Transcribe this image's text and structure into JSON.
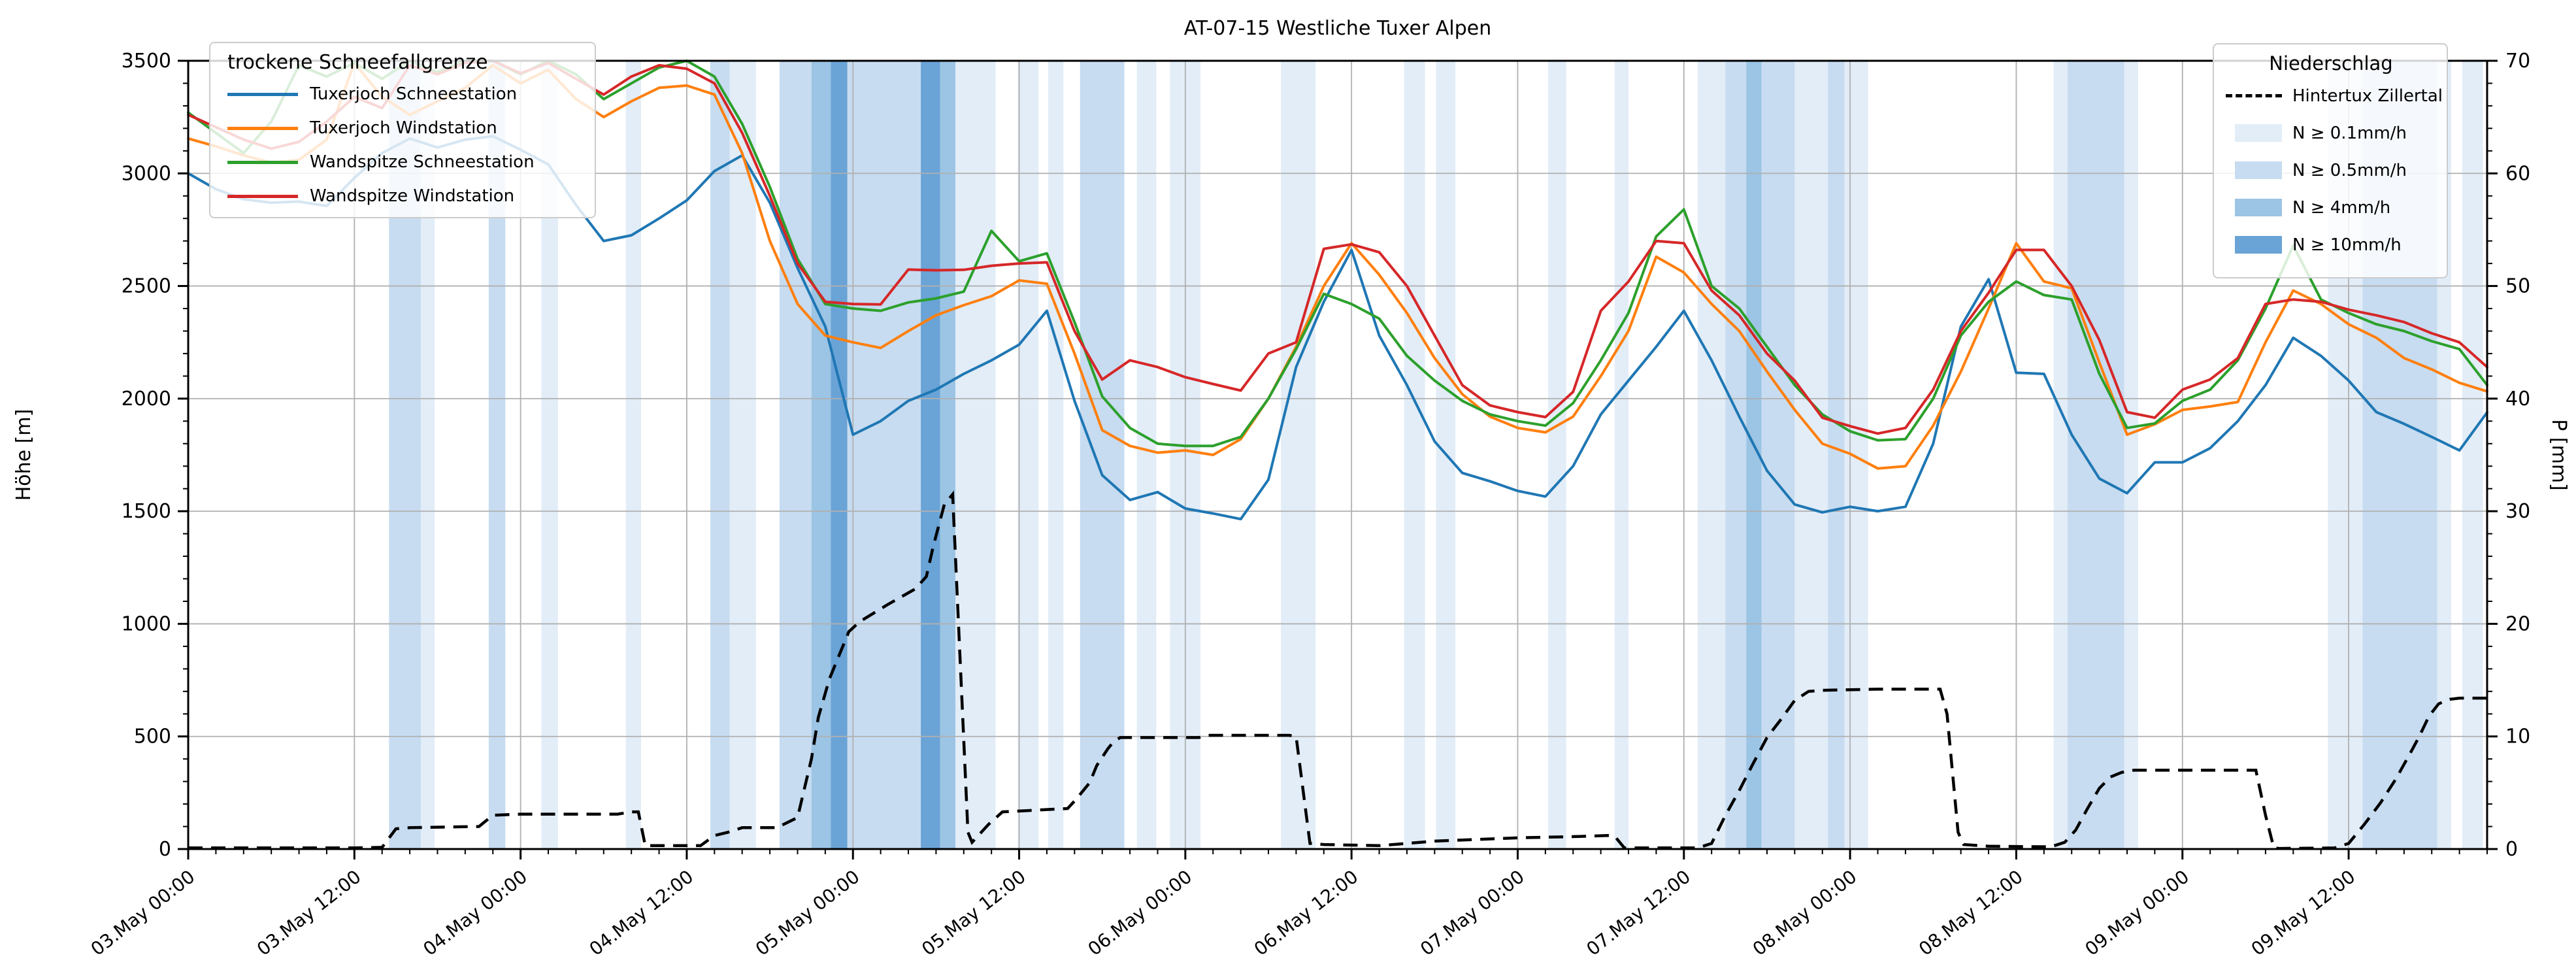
{
  "title": "AT-07-15 Westliche Tuxer Alpen",
  "axes": {
    "left_label": "Höhe [m]",
    "right_label": "P [mm]",
    "left_ticks": [
      "0",
      "500",
      "1000",
      "1500",
      "2000",
      "2500",
      "3000",
      "3500"
    ],
    "right_ticks": [
      "0",
      "10",
      "20",
      "30",
      "40",
      "50",
      "60",
      "70"
    ],
    "x_tick_labels": [
      "03.May 00:00",
      "03.May 12:00",
      "04.May 00:00",
      "04.May 12:00",
      "05.May 00:00",
      "05.May 12:00",
      "06.May 00:00",
      "06.May 12:00",
      "07.May 00:00",
      "07.May 12:00",
      "08.May 00:00",
      "08.May 12:00",
      "09.May 00:00",
      "09.May 12:00"
    ]
  },
  "legend_left": {
    "title": "trockene Schneefallgrenze",
    "entries": [
      {
        "label": "Tuxerjoch Schneestation",
        "color": "#1f77b4"
      },
      {
        "label": "Tuxerjoch Windstation",
        "color": "#ff7f0e"
      },
      {
        "label": "Wandspitze Schneestation",
        "color": "#2ca02c"
      },
      {
        "label": "Wandspitze Windstation",
        "color": "#d62728"
      }
    ]
  },
  "legend_right": {
    "title": "Niederschlag",
    "line_entry": {
      "label": "Hintertux Zillertal",
      "color": "#000000",
      "style": "dashed"
    },
    "band_entries": [
      {
        "label": "N ≥ 0.1mm/h",
        "color": "#e2edf8"
      },
      {
        "label": "N ≥ 0.5mm/h",
        "color": "#c7dcf0"
      },
      {
        "label": "N ≥ 4mm/h",
        "color": "#9cc4e4"
      },
      {
        "label": "N ≥ 10mm/h",
        "color": "#6aa3d6"
      }
    ]
  },
  "chart_data": {
    "type": "line",
    "title": "AT-07-15 Westliche Tuxer Alpen",
    "x_unit": "hours since 03.May 00:00",
    "x_range": [
      0,
      166
    ],
    "x_major_tick_step_h": 12,
    "x_minor_tick_step_h": 2,
    "ylabel": "Höhe [m]",
    "ylim": [
      0,
      3500
    ],
    "y2label": "P [mm]",
    "y2lim": [
      0,
      70
    ],
    "grid": true,
    "sample_step_h": 2,
    "series": [
      {
        "name": "Tuxerjoch Schneestation",
        "color": "#1f77b4",
        "axis": "left",
        "values": [
          3000,
          2930,
          2885,
          2870,
          2875,
          2855,
          2980,
          3090,
          3155,
          3115,
          3150,
          3165,
          3105,
          3040,
          2860,
          2700,
          2725,
          2800,
          2880,
          3010,
          3080,
          2870,
          2580,
          2320,
          1840,
          1900,
          1990,
          2040,
          2110,
          2170,
          2240,
          2390,
          1990,
          1660,
          1550,
          1585,
          1512,
          1490,
          1465,
          1640,
          2140,
          2430,
          2660,
          2280,
          2060,
          1810,
          1670,
          1633,
          1590,
          1565,
          1700,
          1930,
          2080,
          2230,
          2390,
          2170,
          1920,
          1680,
          1530,
          1495,
          1520,
          1500,
          1520,
          1800,
          2320,
          2530,
          2115,
          2110,
          1840,
          1645,
          1580,
          1717,
          1717,
          1780,
          1900,
          2060,
          2270,
          2190,
          2080,
          1940,
          1888,
          1830,
          1770,
          1939
        ]
      },
      {
        "name": "Tuxerjoch Windstation",
        "color": "#ff7f0e",
        "axis": "left",
        "values": [
          3155,
          3120,
          3080,
          3048,
          3060,
          3150,
          3490,
          3340,
          3260,
          3320,
          3380,
          3480,
          3400,
          3460,
          3330,
          3250,
          3320,
          3380,
          3390,
          3350,
          3090,
          2700,
          2420,
          2280,
          2250,
          2225,
          2300,
          2370,
          2415,
          2455,
          2525,
          2510,
          2200,
          1860,
          1790,
          1760,
          1770,
          1750,
          1820,
          2000,
          2230,
          2500,
          2690,
          2550,
          2380,
          2180,
          2020,
          1920,
          1870,
          1850,
          1920,
          2100,
          2300,
          2630,
          2560,
          2420,
          2300,
          2120,
          1950,
          1800,
          1755,
          1690,
          1700,
          1880,
          2120,
          2400,
          2690,
          2520,
          2490,
          2160,
          1840,
          1886,
          1950,
          1965,
          1985,
          2250,
          2480,
          2420,
          2330,
          2270,
          2180,
          2130,
          2070,
          2032
        ]
      },
      {
        "name": "Wandspitze Schneestation",
        "color": "#2ca02c",
        "axis": "left",
        "values": [
          3270,
          3180,
          3090,
          3230,
          3480,
          3430,
          3490,
          3420,
          3500,
          3450,
          3500,
          3500,
          3440,
          3500,
          3440,
          3330,
          3400,
          3470,
          3500,
          3430,
          3220,
          2940,
          2620,
          2420,
          2400,
          2390,
          2427,
          2445,
          2475,
          2745,
          2610,
          2645,
          2340,
          2010,
          1870,
          1800,
          1790,
          1790,
          1830,
          2000,
          2220,
          2465,
          2420,
          2355,
          2190,
          2080,
          1990,
          1930,
          1900,
          1880,
          1980,
          2170,
          2380,
          2720,
          2840,
          2500,
          2400,
          2230,
          2060,
          1930,
          1855,
          1815,
          1820,
          2000,
          2280,
          2430,
          2520,
          2460,
          2440,
          2110,
          1870,
          1890,
          1990,
          2040,
          2170,
          2400,
          2680,
          2440,
          2380,
          2330,
          2300,
          2255,
          2220,
          2060
        ]
      },
      {
        "name": "Wandspitze Windstation",
        "color": "#d62728",
        "axis": "left",
        "values": [
          3260,
          3205,
          3150,
          3110,
          3140,
          3230,
          3340,
          3290,
          3480,
          3440,
          3490,
          3500,
          3445,
          3490,
          3420,
          3350,
          3430,
          3480,
          3465,
          3400,
          3180,
          2900,
          2600,
          2430,
          2420,
          2418,
          2573,
          2570,
          2572,
          2590,
          2600,
          2605,
          2300,
          2085,
          2170,
          2140,
          2095,
          2065,
          2036,
          2200,
          2250,
          2665,
          2685,
          2650,
          2500,
          2280,
          2060,
          1970,
          1940,
          1918,
          2030,
          2390,
          2520,
          2700,
          2690,
          2480,
          2370,
          2200,
          2080,
          1915,
          1878,
          1845,
          1870,
          2040,
          2300,
          2470,
          2660,
          2660,
          2500,
          2260,
          1940,
          1915,
          2040,
          2085,
          2180,
          2420,
          2440,
          2430,
          2395,
          2370,
          2340,
          2290,
          2250,
          2140
        ]
      }
    ],
    "precipitation_line": {
      "name": "Hintertux Zillertal",
      "color": "#000000",
      "style": "dashed",
      "axis": "right",
      "points_t_mm": [
        [
          0,
          0.1
        ],
        [
          12,
          0.1
        ],
        [
          14,
          0.15
        ],
        [
          15,
          1.8
        ],
        [
          16,
          1.9
        ],
        [
          21,
          2.0
        ],
        [
          22,
          3.0
        ],
        [
          24,
          3.1
        ],
        [
          31,
          3.1
        ],
        [
          32,
          3.3
        ],
        [
          32.5,
          3.3
        ],
        [
          33,
          0.3
        ],
        [
          37,
          0.3
        ],
        [
          38,
          1.2
        ],
        [
          39,
          1.5
        ],
        [
          40,
          1.9
        ],
        [
          42.5,
          1.9
        ],
        [
          44,
          2.8
        ],
        [
          45,
          8.0
        ],
        [
          45.5,
          11.7
        ],
        [
          46.3,
          15.1
        ],
        [
          47.7,
          19.3
        ],
        [
          48.5,
          20.2
        ],
        [
          50.5,
          21.7
        ],
        [
          52.5,
          23.1
        ],
        [
          53.3,
          24.2
        ],
        [
          53.8,
          26.9
        ],
        [
          54.6,
          30.6
        ],
        [
          55.2,
          31.5
        ],
        [
          56.3,
          1.5
        ],
        [
          56.6,
          0.6
        ],
        [
          57.8,
          2.2
        ],
        [
          58.8,
          3.3
        ],
        [
          63.5,
          3.6
        ],
        [
          64.1,
          4.4
        ],
        [
          65.1,
          5.9
        ],
        [
          65.6,
          7.4
        ],
        [
          66.4,
          8.9
        ],
        [
          66.8,
          9.5
        ],
        [
          67.3,
          9.9
        ],
        [
          73,
          9.9
        ],
        [
          73.5,
          10.1
        ],
        [
          79.5,
          10.1
        ],
        [
          80,
          10.0
        ],
        [
          81,
          0.5
        ],
        [
          82,
          0.4
        ],
        [
          86,
          0.3
        ],
        [
          88,
          0.5
        ],
        [
          90,
          0.7
        ],
        [
          93,
          0.85
        ],
        [
          96,
          1.0
        ],
        [
          100,
          1.1
        ],
        [
          102.5,
          1.2
        ],
        [
          103,
          1.15
        ],
        [
          103.7,
          0.1
        ],
        [
          109,
          0.1
        ],
        [
          110,
          0.5
        ],
        [
          111,
          3.0
        ],
        [
          112,
          5.2
        ],
        [
          113,
          7.6
        ],
        [
          114,
          9.9
        ],
        [
          115,
          11.5
        ],
        [
          116,
          13.2
        ],
        [
          117,
          14.0
        ],
        [
          118,
          14.1
        ],
        [
          122,
          14.2
        ],
        [
          126.5,
          14.2
        ],
        [
          127,
          12.0
        ],
        [
          127.8,
          1.5
        ],
        [
          128.2,
          0.4
        ],
        [
          130,
          0.25
        ],
        [
          134.5,
          0.2
        ],
        [
          135.5,
          0.6
        ],
        [
          136.3,
          1.7
        ],
        [
          137.1,
          3.5
        ],
        [
          138,
          5.4
        ],
        [
          138.8,
          6.4
        ],
        [
          139.6,
          6.8
        ],
        [
          140.5,
          7.0
        ],
        [
          149.3,
          7.0
        ],
        [
          150,
          3.0
        ],
        [
          150.6,
          0.1
        ],
        [
          151,
          0.05
        ],
        [
          155,
          0.1
        ],
        [
          156,
          0.5
        ],
        [
          157.2,
          2.3
        ],
        [
          158.3,
          4.1
        ],
        [
          159.4,
          6.2
        ],
        [
          160.4,
          8.4
        ],
        [
          161.1,
          10.0
        ],
        [
          161.8,
          11.8
        ],
        [
          162.5,
          12.9
        ],
        [
          163.3,
          13.3
        ],
        [
          164,
          13.4
        ],
        [
          166,
          13.4
        ]
      ]
    },
    "precip_band_levels": [
      {
        "label": "N ≥ 0.1mm/h",
        "color": "#e2edf8"
      },
      {
        "label": "N ≥ 0.5mm/h",
        "color": "#c7dcf0"
      },
      {
        "label": "N ≥ 4mm/h",
        "color": "#9cc4e4"
      },
      {
        "label": "N ≥ 10mm/h",
        "color": "#6aa3d6"
      }
    ],
    "precip_bands_t_level": [
      [
        14.5,
        16.8,
        2
      ],
      [
        16.8,
        17.8,
        1
      ],
      [
        21.7,
        22.9,
        2
      ],
      [
        25.5,
        26.7,
        1
      ],
      [
        31.6,
        32.7,
        1
      ],
      [
        37.7,
        39.1,
        2
      ],
      [
        39.1,
        41.0,
        1
      ],
      [
        42.7,
        45.0,
        2
      ],
      [
        45.0,
        46.4,
        3
      ],
      [
        46.4,
        47.6,
        4
      ],
      [
        47.6,
        52.9,
        2
      ],
      [
        52.9,
        54.3,
        4
      ],
      [
        54.3,
        55.4,
        3
      ],
      [
        55.4,
        58.3,
        1
      ],
      [
        59.9,
        61.4,
        1
      ],
      [
        62.1,
        63.2,
        1
      ],
      [
        64.4,
        67.6,
        2
      ],
      [
        68.5,
        69.9,
        1
      ],
      [
        70.9,
        73.1,
        1
      ],
      [
        78.9,
        81.4,
        1
      ],
      [
        87.8,
        89.3,
        1
      ],
      [
        90.1,
        91.5,
        1
      ],
      [
        98.2,
        99.5,
        1
      ],
      [
        103.0,
        104.0,
        1
      ],
      [
        109.0,
        111.0,
        1
      ],
      [
        111.0,
        112.5,
        2
      ],
      [
        112.5,
        113.6,
        3
      ],
      [
        113.6,
        116.0,
        2
      ],
      [
        116.0,
        118.4,
        1
      ],
      [
        118.4,
        119.6,
        2
      ],
      [
        119.6,
        121.3,
        1
      ],
      [
        134.7,
        135.7,
        1
      ],
      [
        135.7,
        139.8,
        2
      ],
      [
        139.8,
        140.8,
        1
      ],
      [
        154.5,
        157.0,
        1
      ],
      [
        157.0,
        162.4,
        2
      ],
      [
        162.4,
        163.4,
        1
      ],
      [
        164.2,
        165.7,
        1
      ]
    ],
    "colors": {
      "grid": "#b0b0b0",
      "spine": "#000000"
    }
  }
}
